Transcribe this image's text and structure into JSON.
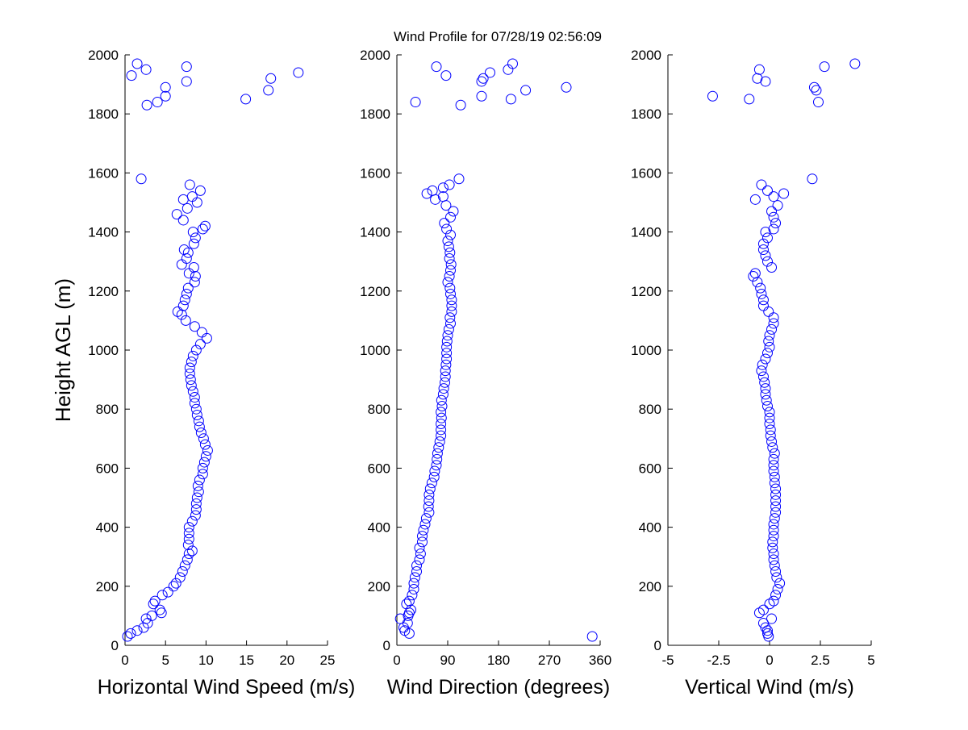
{
  "chart_data": {
    "title": "Wind Profile for  07/28/19 02:56:09",
    "ylabel": "Height AGL (m)",
    "marker_color": "#0000ff",
    "marker": "open-circle",
    "grid": false,
    "panels": [
      {
        "type": "scatter",
        "xlabel": "Horizontal Wind Speed (m/s)",
        "xlim": [
          0,
          25
        ],
        "xticks": [
          0,
          5,
          10,
          15,
          20,
          25
        ],
        "ylim": [
          0,
          2000
        ],
        "yticks": [
          0,
          200,
          400,
          600,
          800,
          1000,
          1200,
          1400,
          1600,
          1800,
          2000
        ],
        "points": [
          [
            0.3,
            30
          ],
          [
            0.7,
            40
          ],
          [
            1.5,
            50
          ],
          [
            2.3,
            60
          ],
          [
            2.8,
            75
          ],
          [
            2.6,
            90
          ],
          [
            3.3,
            100
          ],
          [
            4.5,
            110
          ],
          [
            4.3,
            120
          ],
          [
            3.5,
            140
          ],
          [
            3.7,
            150
          ],
          [
            4.6,
            170
          ],
          [
            5.3,
            180
          ],
          [
            6.0,
            200
          ],
          [
            6.3,
            210
          ],
          [
            6.8,
            230
          ],
          [
            7.1,
            250
          ],
          [
            7.4,
            270
          ],
          [
            7.7,
            290
          ],
          [
            7.9,
            310
          ],
          [
            8.3,
            320
          ],
          [
            7.8,
            340
          ],
          [
            7.9,
            360
          ],
          [
            7.9,
            380
          ],
          [
            7.9,
            400
          ],
          [
            8.3,
            420
          ],
          [
            8.7,
            440
          ],
          [
            8.8,
            460
          ],
          [
            8.8,
            480
          ],
          [
            8.9,
            500
          ],
          [
            9.1,
            520
          ],
          [
            9.0,
            540
          ],
          [
            9.2,
            560
          ],
          [
            9.6,
            580
          ],
          [
            9.6,
            600
          ],
          [
            9.8,
            620
          ],
          [
            10.0,
            640
          ],
          [
            10.2,
            660
          ],
          [
            9.9,
            680
          ],
          [
            9.7,
            700
          ],
          [
            9.4,
            720
          ],
          [
            9.2,
            740
          ],
          [
            9.1,
            760
          ],
          [
            8.9,
            780
          ],
          [
            8.8,
            800
          ],
          [
            8.6,
            820
          ],
          [
            8.6,
            840
          ],
          [
            8.4,
            860
          ],
          [
            8.2,
            880
          ],
          [
            8.1,
            900
          ],
          [
            8.0,
            920
          ],
          [
            8.0,
            940
          ],
          [
            8.2,
            960
          ],
          [
            8.4,
            980
          ],
          [
            8.8,
            1000
          ],
          [
            9.3,
            1020
          ],
          [
            10.1,
            1040
          ],
          [
            9.5,
            1060
          ],
          [
            8.6,
            1080
          ],
          [
            7.5,
            1100
          ],
          [
            7.0,
            1120
          ],
          [
            6.5,
            1130
          ],
          [
            7.2,
            1150
          ],
          [
            7.4,
            1170
          ],
          [
            7.6,
            1190
          ],
          [
            7.8,
            1210
          ],
          [
            8.6,
            1230
          ],
          [
            8.7,
            1250
          ],
          [
            7.9,
            1260
          ],
          [
            8.5,
            1280
          ],
          [
            7.0,
            1290
          ],
          [
            7.6,
            1310
          ],
          [
            7.8,
            1330
          ],
          [
            7.3,
            1340
          ],
          [
            8.5,
            1360
          ],
          [
            8.7,
            1380
          ],
          [
            8.4,
            1400
          ],
          [
            9.6,
            1410
          ],
          [
            9.9,
            1420
          ],
          [
            7.2,
            1440
          ],
          [
            6.4,
            1460
          ],
          [
            7.7,
            1480
          ],
          [
            8.9,
            1500
          ],
          [
            7.2,
            1510
          ],
          [
            8.3,
            1520
          ],
          [
            9.3,
            1540
          ],
          [
            8.0,
            1560
          ],
          [
            2.0,
            1580
          ],
          [
            0.8,
            1930
          ],
          [
            1.5,
            1970
          ],
          [
            2.6,
            1950
          ],
          [
            2.7,
            1830
          ],
          [
            4.0,
            1840
          ],
          [
            5.0,
            1860
          ],
          [
            5.0,
            1890
          ],
          [
            7.6,
            1960
          ],
          [
            7.6,
            1910
          ],
          [
            14.9,
            1850
          ],
          [
            17.7,
            1880
          ],
          [
            18.0,
            1920
          ],
          [
            21.4,
            1940
          ]
        ]
      },
      {
        "type": "scatter",
        "xlabel": "Wind Direction (degrees)",
        "xlim": [
          0,
          360
        ],
        "xticks": [
          0,
          90,
          180,
          270,
          360
        ],
        "ylim": [
          0,
          2000
        ],
        "yticks": [
          0,
          200,
          400,
          600,
          800,
          1000,
          1200,
          1400,
          1600,
          1800,
          2000
        ],
        "points": [
          [
            346,
            30
          ],
          [
            22,
            40
          ],
          [
            14,
            50
          ],
          [
            12,
            60
          ],
          [
            19,
            75
          ],
          [
            6,
            90
          ],
          [
            20,
            100
          ],
          [
            22,
            110
          ],
          [
            25,
            120
          ],
          [
            17,
            140
          ],
          [
            22,
            150
          ],
          [
            27,
            170
          ],
          [
            30,
            190
          ],
          [
            30,
            210
          ],
          [
            32,
            230
          ],
          [
            35,
            250
          ],
          [
            35,
            270
          ],
          [
            40,
            290
          ],
          [
            42,
            310
          ],
          [
            40,
            330
          ],
          [
            45,
            350
          ],
          [
            45,
            370
          ],
          [
            47,
            390
          ],
          [
            50,
            410
          ],
          [
            52,
            430
          ],
          [
            57,
            450
          ],
          [
            56,
            470
          ],
          [
            57,
            490
          ],
          [
            57,
            510
          ],
          [
            59,
            530
          ],
          [
            62,
            550
          ],
          [
            66,
            570
          ],
          [
            67,
            590
          ],
          [
            70,
            610
          ],
          [
            71,
            630
          ],
          [
            72,
            650
          ],
          [
            74,
            670
          ],
          [
            76,
            690
          ],
          [
            78,
            710
          ],
          [
            78,
            730
          ],
          [
            78,
            750
          ],
          [
            79,
            770
          ],
          [
            78,
            790
          ],
          [
            80,
            810
          ],
          [
            79,
            830
          ],
          [
            82,
            850
          ],
          [
            83,
            870
          ],
          [
            85,
            890
          ],
          [
            86,
            910
          ],
          [
            86,
            930
          ],
          [
            87,
            950
          ],
          [
            88,
            970
          ],
          [
            88,
            990
          ],
          [
            88,
            1010
          ],
          [
            89,
            1030
          ],
          [
            90,
            1050
          ],
          [
            92,
            1070
          ],
          [
            95,
            1090
          ],
          [
            94,
            1110
          ],
          [
            97,
            1130
          ],
          [
            97,
            1150
          ],
          [
            97,
            1170
          ],
          [
            95,
            1190
          ],
          [
            94,
            1210
          ],
          [
            90,
            1230
          ],
          [
            93,
            1250
          ],
          [
            95,
            1270
          ],
          [
            96,
            1290
          ],
          [
            93,
            1310
          ],
          [
            94,
            1330
          ],
          [
            92,
            1350
          ],
          [
            90,
            1370
          ],
          [
            95,
            1390
          ],
          [
            88,
            1410
          ],
          [
            84,
            1430
          ],
          [
            95,
            1450
          ],
          [
            100,
            1470
          ],
          [
            87,
            1490
          ],
          [
            68,
            1510
          ],
          [
            82,
            1520
          ],
          [
            53,
            1530
          ],
          [
            63,
            1540
          ],
          [
            82,
            1550
          ],
          [
            93,
            1560
          ],
          [
            110,
            1580
          ],
          [
            33,
            1840
          ],
          [
            70,
            1960
          ],
          [
            87,
            1930
          ],
          [
            113,
            1830
          ],
          [
            150,
            1860
          ],
          [
            150,
            1910
          ],
          [
            153,
            1920
          ],
          [
            165,
            1940
          ],
          [
            197,
            1950
          ],
          [
            205,
            1970
          ],
          [
            202,
            1850
          ],
          [
            228,
            1880
          ],
          [
            300,
            1890
          ]
        ]
      },
      {
        "type": "scatter",
        "xlabel": "Vertical Wind (m/s)",
        "xlim": [
          -5,
          5
        ],
        "xticks": [
          -5,
          -2.5,
          0,
          2.5,
          5
        ],
        "ylim": [
          0,
          2000
        ],
        "yticks": [
          0,
          200,
          400,
          600,
          800,
          1000,
          1200,
          1400,
          1600,
          1800,
          2000
        ],
        "points": [
          [
            -0.05,
            30
          ],
          [
            -0.1,
            40
          ],
          [
            -0.1,
            50
          ],
          [
            -0.2,
            60
          ],
          [
            -0.3,
            75
          ],
          [
            0.1,
            90
          ],
          [
            -0.5,
            110
          ],
          [
            -0.3,
            120
          ],
          [
            0.0,
            140
          ],
          [
            0.2,
            150
          ],
          [
            0.3,
            170
          ],
          [
            0.4,
            190
          ],
          [
            0.5,
            210
          ],
          [
            0.35,
            230
          ],
          [
            0.3,
            250
          ],
          [
            0.25,
            270
          ],
          [
            0.2,
            290
          ],
          [
            0.2,
            310
          ],
          [
            0.15,
            330
          ],
          [
            0.15,
            350
          ],
          [
            0.2,
            370
          ],
          [
            0.2,
            390
          ],
          [
            0.2,
            410
          ],
          [
            0.25,
            430
          ],
          [
            0.3,
            450
          ],
          [
            0.3,
            470
          ],
          [
            0.3,
            490
          ],
          [
            0.3,
            510
          ],
          [
            0.3,
            530
          ],
          [
            0.25,
            550
          ],
          [
            0.25,
            570
          ],
          [
            0.2,
            590
          ],
          [
            0.2,
            610
          ],
          [
            0.2,
            630
          ],
          [
            0.25,
            650
          ],
          [
            0.15,
            670
          ],
          [
            0.1,
            690
          ],
          [
            0.05,
            710
          ],
          [
            0.05,
            730
          ],
          [
            0.0,
            750
          ],
          [
            0.0,
            770
          ],
          [
            0.0,
            790
          ],
          [
            -0.1,
            810
          ],
          [
            -0.15,
            830
          ],
          [
            -0.2,
            850
          ],
          [
            -0.2,
            870
          ],
          [
            -0.25,
            890
          ],
          [
            -0.3,
            910
          ],
          [
            -0.4,
            930
          ],
          [
            -0.35,
            950
          ],
          [
            -0.2,
            970
          ],
          [
            -0.1,
            990
          ],
          [
            0.0,
            1010
          ],
          [
            -0.05,
            1030
          ],
          [
            0.0,
            1050
          ],
          [
            0.1,
            1070
          ],
          [
            0.2,
            1090
          ],
          [
            0.2,
            1110
          ],
          [
            -0.05,
            1130
          ],
          [
            -0.3,
            1150
          ],
          [
            -0.3,
            1170
          ],
          [
            -0.4,
            1190
          ],
          [
            -0.45,
            1210
          ],
          [
            -0.6,
            1230
          ],
          [
            -0.8,
            1250
          ],
          [
            -0.7,
            1260
          ],
          [
            0.1,
            1280
          ],
          [
            -0.1,
            1300
          ],
          [
            -0.2,
            1320
          ],
          [
            -0.3,
            1340
          ],
          [
            -0.3,
            1360
          ],
          [
            -0.1,
            1380
          ],
          [
            -0.2,
            1400
          ],
          [
            0.2,
            1410
          ],
          [
            0.3,
            1430
          ],
          [
            0.2,
            1450
          ],
          [
            0.1,
            1470
          ],
          [
            0.4,
            1490
          ],
          [
            -0.7,
            1510
          ],
          [
            0.2,
            1520
          ],
          [
            0.7,
            1530
          ],
          [
            -0.1,
            1540
          ],
          [
            -0.4,
            1560
          ],
          [
            2.1,
            1580
          ],
          [
            -2.8,
            1860
          ],
          [
            -1.0,
            1850
          ],
          [
            -0.6,
            1920
          ],
          [
            -0.5,
            1950
          ],
          [
            -0.2,
            1910
          ],
          [
            2.2,
            1890
          ],
          [
            2.3,
            1880
          ],
          [
            2.4,
            1840
          ],
          [
            2.7,
            1960
          ],
          [
            4.2,
            1970
          ]
        ]
      }
    ]
  }
}
